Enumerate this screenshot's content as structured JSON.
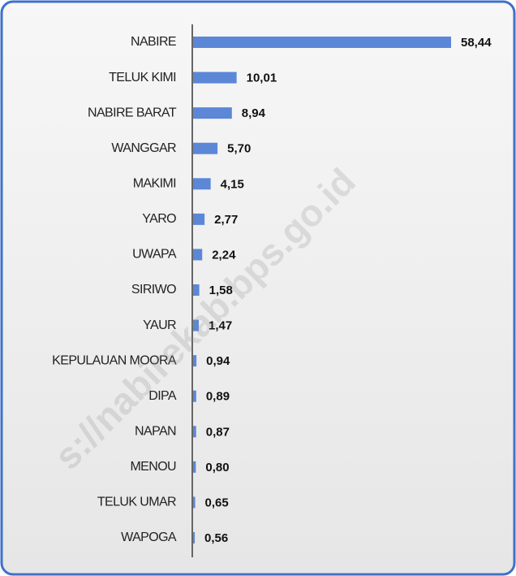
{
  "chart_data": {
    "type": "bar",
    "orientation": "horizontal",
    "categories": [
      "NABIRE",
      "TELUK KIMI",
      "NABIRE BARAT",
      "WANGGAR",
      "MAKIMI",
      "YARO",
      "UWAPA",
      "SIRIWO",
      "YAUR",
      "KEPULAUAN MOORA",
      "DIPA",
      "NAPAN",
      "MENOU",
      "TELUK UMAR",
      "WAPOGA"
    ],
    "values": [
      58.44,
      10.01,
      8.94,
      5.7,
      4.15,
      2.77,
      2.24,
      1.58,
      1.47,
      0.94,
      0.89,
      0.87,
      0.8,
      0.65,
      0.56
    ],
    "value_labels": [
      "58,44",
      "10,01",
      "8,94",
      "5,70",
      "4,15",
      "2,77",
      "2,24",
      "1,58",
      "1,47",
      "0,94",
      "0,89",
      "0,87",
      "0,80",
      "0,65",
      "0,56"
    ],
    "color": "#5b87d6",
    "watermark": "s://nabirekab.bps.go.id"
  }
}
